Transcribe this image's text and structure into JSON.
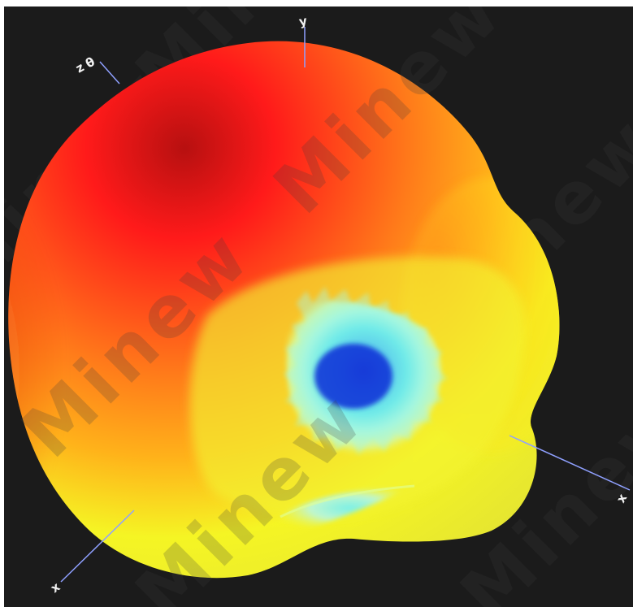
{
  "viewer": {
    "background_color": "#1b1b1b",
    "axes": {
      "x_label": "x",
      "y_label": "y",
      "z_label": "z",
      "y_secondary_label": "θ"
    },
    "pattern": {
      "colormap": "jet",
      "colors": {
        "max": "#ff1a1a",
        "high": "#ff7a1a",
        "mid": "#f5f524",
        "low": "#7ff7e9",
        "min": "#0a2fd6"
      }
    },
    "watermark": {
      "text": "Minew"
    }
  }
}
